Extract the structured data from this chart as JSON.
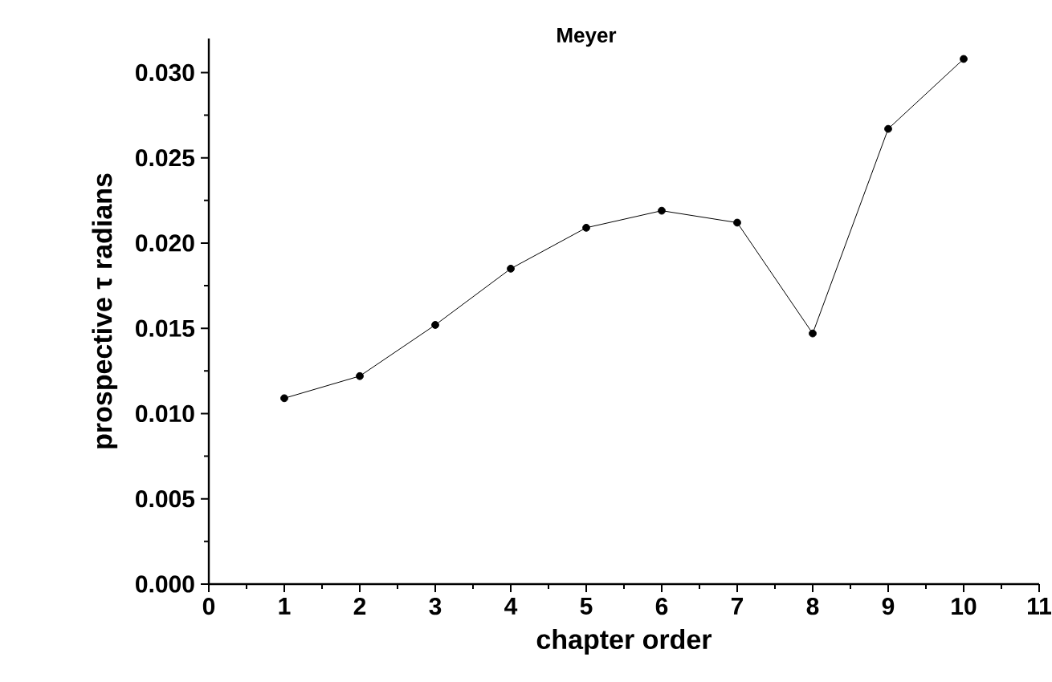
{
  "chart_data": {
    "type": "line",
    "title": "Meyer",
    "xlabel": "chapter order",
    "ylabel": "prospective τ radians",
    "x": [
      1,
      2,
      3,
      4,
      5,
      6,
      7,
      8,
      9,
      10
    ],
    "series": [
      {
        "color": "#000000",
        "values": [
          0.0109,
          0.0122,
          0.0152,
          0.0185,
          0.0209,
          0.0219,
          0.0212,
          0.0147,
          0.0267,
          0.0308
        ]
      }
    ],
    "xlim": [
      0,
      11
    ],
    "ylim": [
      0,
      0.032
    ],
    "xticks": [
      0,
      1,
      2,
      3,
      4,
      5,
      6,
      7,
      8,
      9,
      10,
      11
    ],
    "yticks": [
      {
        "value": 0,
        "label": "0.000"
      },
      {
        "value": 0.005,
        "label": "0.005"
      },
      {
        "value": 0.01,
        "label": "0.010"
      },
      {
        "value": 0.015,
        "label": "0.015"
      },
      {
        "value": 0.02,
        "label": "0.020"
      },
      {
        "value": 0.025,
        "label": "0.025"
      },
      {
        "value": 0.03,
        "label": "0.030"
      }
    ],
    "marker": "circle",
    "line_style": "solid",
    "grid": false
  }
}
